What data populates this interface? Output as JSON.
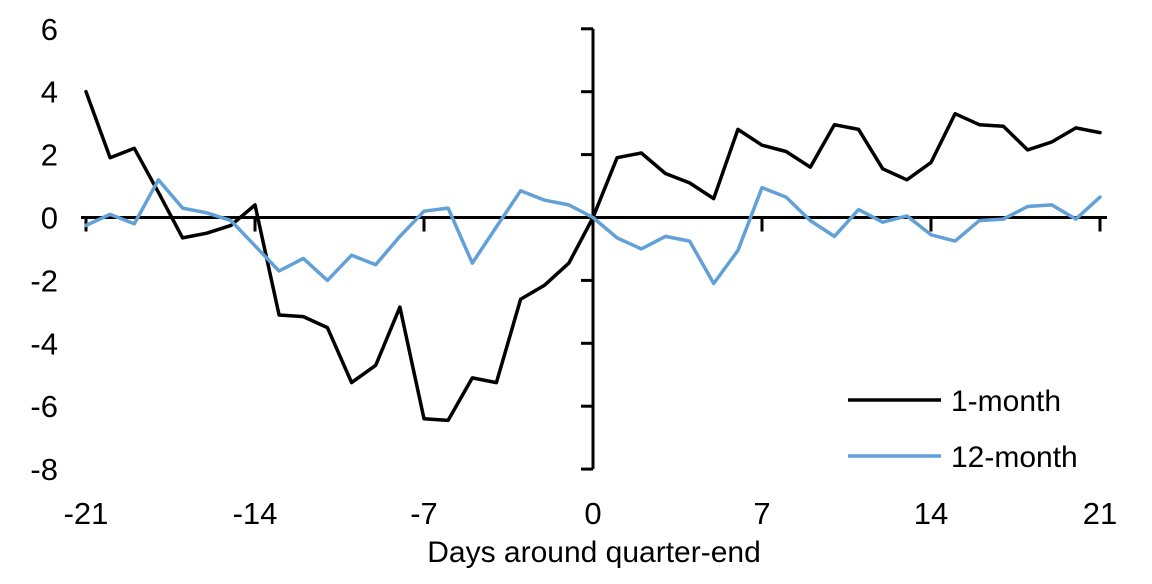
{
  "chart_data": {
    "type": "line",
    "title": "",
    "xlabel": "Days around quarter-end",
    "ylabel": "",
    "grid": false,
    "legend_position": "inside-right",
    "xlim": [
      -21,
      21
    ],
    "ylim": [
      -8,
      6
    ],
    "x_ticks": [
      -21,
      -14,
      -7,
      0,
      7,
      14,
      21
    ],
    "y_ticks": [
      6,
      4,
      2,
      0,
      -2,
      -4,
      -6,
      -8
    ],
    "x": [
      -21,
      -20,
      -19,
      -18,
      -17,
      -16,
      -15,
      -14,
      -13,
      -12,
      -11,
      -10,
      -9,
      -8,
      -7,
      -6,
      -5,
      -4,
      -3,
      -2,
      -1,
      0,
      1,
      2,
      3,
      4,
      5,
      6,
      7,
      8,
      9,
      10,
      11,
      12,
      13,
      14,
      15,
      16,
      17,
      18,
      19,
      20,
      21
    ],
    "series": [
      {
        "name": "1-month",
        "color": "#000000",
        "values": [
          4.0,
          1.9,
          2.2,
          0.8,
          -0.65,
          -0.5,
          -0.25,
          0.4,
          -3.1,
          -3.15,
          -3.5,
          -5.25,
          -4.7,
          -2.85,
          -6.4,
          -6.45,
          -5.1,
          -5.25,
          -2.6,
          -2.15,
          -1.45,
          0.0,
          1.9,
          2.05,
          1.4,
          1.1,
          0.6,
          2.8,
          2.3,
          2.1,
          1.6,
          2.95,
          2.8,
          1.55,
          1.2,
          1.75,
          3.3,
          2.95,
          2.9,
          2.15,
          2.4,
          2.85,
          2.7
        ]
      },
      {
        "name": "12-month",
        "color": "#62A0D8",
        "values": [
          -0.25,
          0.1,
          -0.2,
          1.2,
          0.3,
          0.15,
          -0.1,
          -0.9,
          -1.7,
          -1.3,
          -2.0,
          -1.2,
          -1.5,
          -0.6,
          0.2,
          0.3,
          -1.45,
          -0.3,
          0.85,
          0.55,
          0.4,
          0.0,
          -0.65,
          -1.0,
          -0.6,
          -0.75,
          -2.1,
          -1.05,
          0.95,
          0.65,
          -0.1,
          -0.6,
          0.25,
          -0.15,
          0.05,
          -0.55,
          -0.75,
          -0.1,
          -0.05,
          0.35,
          0.4,
          -0.05,
          0.65
        ]
      }
    ]
  }
}
